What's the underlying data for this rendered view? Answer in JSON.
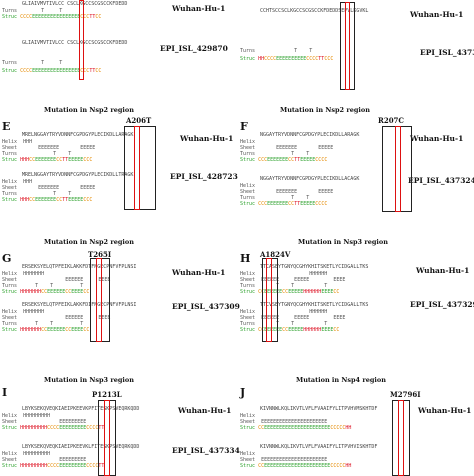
{
  "panels": [
    {
      "id": "top-left",
      "letter": "",
      "title": "",
      "mutation": "",
      "seq1": "GLIAIVMVTIVLCC CSCLKGCCSCGSCCKFDEDD",
      "seq2": "GLIAIVMVTIVLCC CSCLKGCCSCGSCCKFDEDD",
      "strain1": "Wuhan-Hu-1",
      "strain2": "EPI_ISL_429870",
      "rows": [
        "Turns",
        "Struc"
      ]
    },
    {
      "id": "top-right",
      "letter": "",
      "title": "",
      "mutation": "",
      "seq1": "CCHTSCCSCLKGCCSCGSCCKFDEDDSEPVLKGVKL",
      "seq2": "CCHTSCCSCLKGCCSCGSCCKFDEDDSEPVLKGVKL",
      "strain1": "Wuhan-Hu-1",
      "strain2": "EPI_ISL_437317",
      "rows": [
        "Turns",
        "Struc"
      ]
    },
    {
      "id": "E",
      "letter": "E",
      "title": "Mutation in Nsp2 region",
      "mutation": "A206T",
      "seq1": "MRELNGGAYTRYVDNNFCGPDGYPLECIKDLLARAGK",
      "seq2": "MRELNGGAYTRYVDNNFCGPDGYPLECIKDLLTRAGK",
      "strain1": "Wuhan-Hu-1",
      "strain2": "EPI_ISL_428723",
      "rows": [
        "Helix",
        "Sheet",
        "Turns",
        "Struc"
      ]
    },
    {
      "id": "F",
      "letter": "F",
      "title": "Mutation in Nsp2 region",
      "mutation": "R207C",
      "seq1": "NGGAYTRYVDNNFCGPDGYPLECIKDLLARAGK",
      "seq2": "NGGAYTRYVDNNFCGPDGYPLECIKDLLACAGK",
      "strain1": "Wuhan-Hu-1",
      "strain2": "EPI_ISL_437324",
      "rows": [
        "Helix",
        "Sheet",
        "Turns",
        "Struc"
      ]
    },
    {
      "id": "G",
      "letter": "G",
      "title": "Mutation in Nsp2 region",
      "mutation": "T265I",
      "seq1": "ERSEKSYELQTPFEIKLAKKFDTFNGECPNFVFPLNSI",
      "seq2": "ERSEKSYELQTPFEIKLAKKFDIFNGECPNFVFPLNSI",
      "strain1": "Wuhan-Hu-1",
      "strain2": "EPI_ISL_437309",
      "rows": [
        "Helix",
        "Sheet",
        "Turns",
        "Struc"
      ]
    },
    {
      "id": "H",
      "letter": "H",
      "title": "Mutation in Nsp3 region",
      "mutation": "A1824V",
      "seq1": "TTCASEYTGNYQCGHYKHITSKETLYCIDGALLTKS",
      "seq2": "TTCVSEYTGNYQCGHYKHITSKETLYCIDGALLTKS",
      "strain1": "Wuhan-Hu-1",
      "strain2": "EPI_ISL_437329",
      "rows": [
        "Helix",
        "Sheet",
        "Turns",
        "Struc"
      ]
    },
    {
      "id": "I",
      "letter": "I",
      "title": "Mutation in Nsp3 region",
      "mutation": "P1213L",
      "seq1": "LBYKSEKQVEQKIAEIPKEEVKPFITESKPSVEQRKQDD",
      "seq2": "LBYKSEKQVEQKIAEIPKEEVKLFITESKPSVEQRKQDD",
      "strain1": "Wuhan-Hu-1",
      "strain2": "EPI_ISL_437334",
      "rows": [
        "Helix",
        "Sheet",
        "Struc"
      ]
    },
    {
      "id": "J",
      "letter": "J",
      "title": "Mutation in Nsp4 region",
      "mutation": "M2796I",
      "seq1": "KIVNNWLKQLIKVTLVFLFVAAIFYLITPVHVMSKHTDF",
      "seq2": "KIVNNWLKQLIKVTLVFLFVAAIFYLITPVHVISKHTDF",
      "strain1": "Wuhan-Hu-1",
      "strain2": "",
      "rows": [
        "Helix",
        "Sheet",
        "Struc"
      ]
    }
  ]
}
